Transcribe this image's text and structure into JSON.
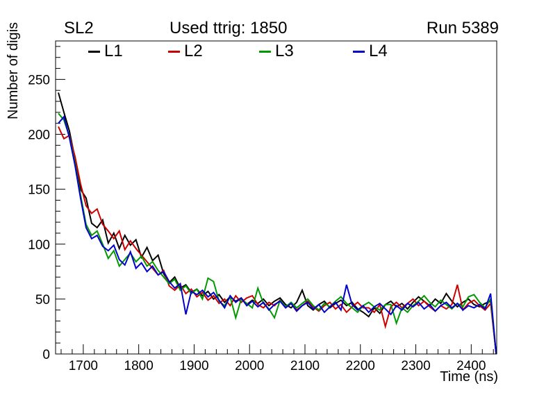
{
  "titles": {
    "left": "SL2",
    "center": "Used ttrig: 1850",
    "right": "Run 5389"
  },
  "chart_data": {
    "type": "line",
    "title": "Used ttrig: 1850",
    "xlabel": "Time (ns)",
    "ylabel": "Number of digis",
    "xlim": [
      1650,
      2446
    ],
    "ylim": [
      0,
      285
    ],
    "x_ticks": [
      1700,
      1800,
      1900,
      2000,
      2100,
      2200,
      2300,
      2400
    ],
    "x_minor_step": 20,
    "y_ticks": [
      0,
      50,
      100,
      150,
      200,
      250
    ],
    "y_minor_step": 10,
    "grid": false,
    "legend_position": "top-inside-horizontal",
    "x": [
      1655,
      1665,
      1675,
      1685,
      1695,
      1705,
      1715,
      1725,
      1735,
      1745,
      1755,
      1765,
      1775,
      1785,
      1795,
      1805,
      1815,
      1825,
      1835,
      1845,
      1855,
      1865,
      1875,
      1885,
      1895,
      1905,
      1915,
      1925,
      1935,
      1945,
      1955,
      1965,
      1975,
      1985,
      1995,
      2005,
      2015,
      2025,
      2035,
      2045,
      2055,
      2065,
      2075,
      2085,
      2095,
      2105,
      2115,
      2125,
      2135,
      2145,
      2155,
      2165,
      2175,
      2185,
      2195,
      2205,
      2215,
      2225,
      2235,
      2245,
      2255,
      2265,
      2275,
      2285,
      2295,
      2305,
      2315,
      2325,
      2335,
      2345,
      2355,
      2365,
      2375,
      2385,
      2395,
      2405,
      2415,
      2425,
      2435,
      2445
    ],
    "series": [
      {
        "name": "L1",
        "color": "#000000",
        "values": [
          238,
          220,
          203,
          178,
          150,
          142,
          119,
          115,
          122,
          101,
          110,
          96,
          108,
          99,
          104,
          88,
          97,
          85,
          90,
          73,
          65,
          70,
          60,
          63,
          56,
          59,
          53,
          57,
          50,
          54,
          47,
          52,
          48,
          51,
          45,
          49,
          46,
          50,
          44,
          48,
          51,
          45,
          42,
          47,
          58,
          44,
          40,
          45,
          48,
          42,
          46,
          49,
          44,
          47,
          41,
          38,
          34,
          42,
          37,
          45,
          48,
          43,
          46,
          41,
          47,
          52,
          48,
          44,
          50,
          46,
          55,
          48,
          43,
          47,
          50,
          45,
          43,
          46,
          48,
          0
        ]
      },
      {
        "name": "L2",
        "color": "#cc0000",
        "values": [
          207,
          196,
          199,
          180,
          155,
          135,
          128,
          132,
          118,
          112,
          105,
          112,
          95,
          103,
          96,
          90,
          84,
          78,
          72,
          76,
          62,
          58,
          63,
          55,
          59,
          52,
          56,
          49,
          53,
          46,
          50,
          44,
          53,
          47,
          51,
          53,
          45,
          42,
          47,
          44,
          49,
          42,
          46,
          40,
          44,
          48,
          43,
          39,
          44,
          47,
          41,
          45,
          38,
          43,
          47,
          42,
          42,
          38,
          45,
          25,
          43,
          47,
          42,
          46,
          50,
          44,
          48,
          43,
          39,
          44,
          41,
          45,
          63,
          40,
          46,
          49,
          44,
          40,
          46,
          0
        ]
      },
      {
        "name": "L3",
        "color": "#009900",
        "values": [
          219,
          213,
          198,
          174,
          145,
          118,
          108,
          112,
          100,
          87,
          94,
          80,
          86,
          92,
          84,
          89,
          80,
          84,
          76,
          70,
          64,
          68,
          58,
          62,
          55,
          59,
          50,
          69,
          66,
          48,
          44,
          52,
          33,
          50,
          46,
          42,
          60,
          46,
          41,
          33,
          49,
          43,
          47,
          42,
          46,
          50,
          44,
          40,
          46,
          43,
          48,
          52,
          46,
          42,
          38,
          44,
          47,
          43,
          40,
          45,
          45,
          28,
          42,
          38,
          44,
          48,
          53,
          47,
          43,
          49,
          45,
          41,
          46,
          43,
          52,
          54,
          47,
          42,
          50,
          0
        ]
      },
      {
        "name": "L4",
        "color": "#0000cc",
        "values": [
          210,
          216,
          197,
          172,
          142,
          115,
          105,
          108,
          98,
          94,
          99,
          86,
          81,
          93,
          78,
          83,
          75,
          80,
          72,
          75,
          66,
          60,
          64,
          36,
          57,
          54,
          58,
          52,
          56,
          49,
          42,
          53,
          47,
          51,
          44,
          48,
          43,
          47,
          40,
          45,
          48,
          42,
          46,
          39,
          44,
          47,
          41,
          45,
          38,
          43,
          47,
          40,
          63,
          45,
          40,
          44,
          38,
          43,
          46,
          41,
          36,
          44,
          40,
          46,
          43,
          47,
          41,
          45,
          39,
          44,
          47,
          42,
          46,
          40,
          44,
          42,
          45,
          41,
          55,
          0
        ]
      }
    ]
  }
}
